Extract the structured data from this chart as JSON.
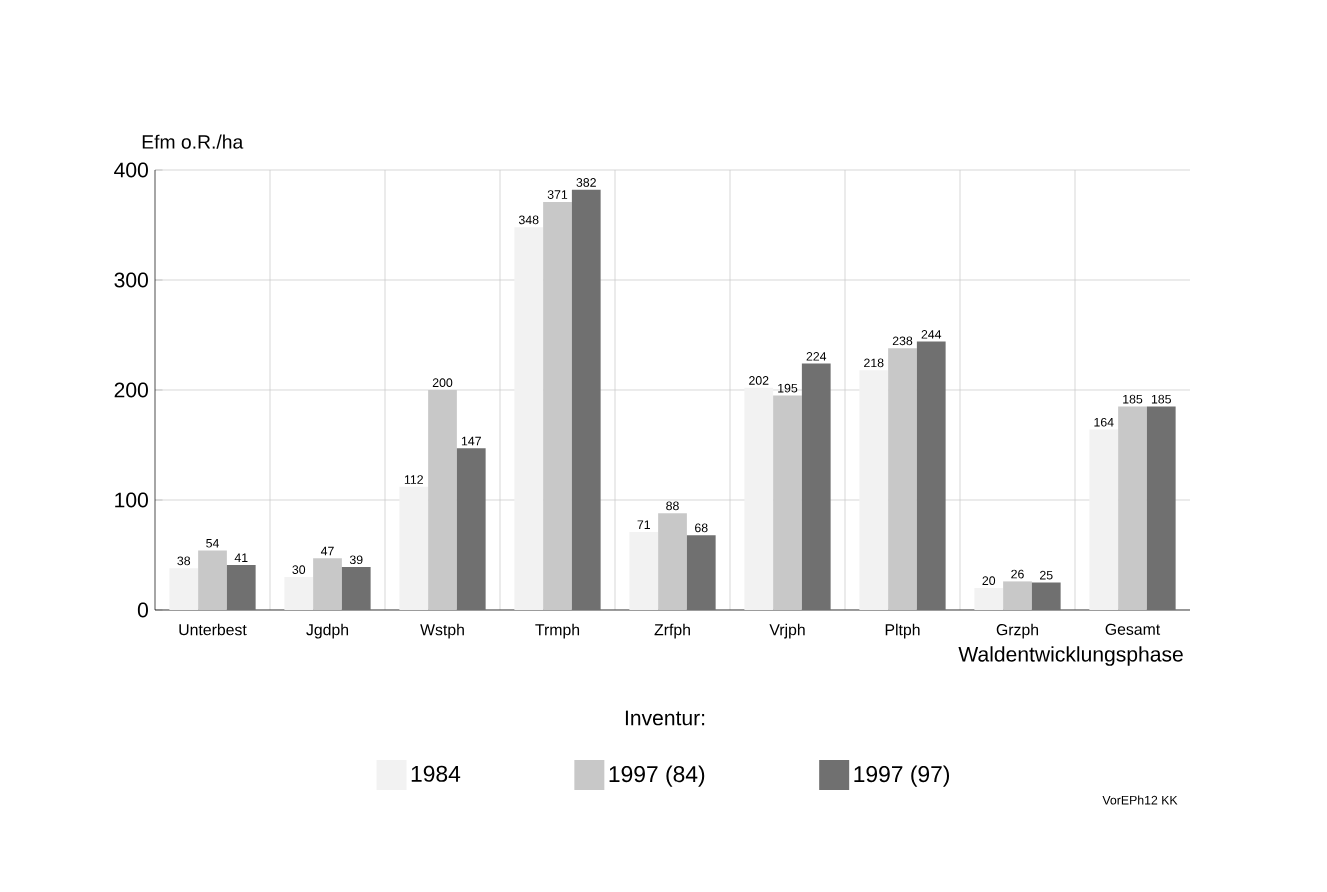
{
  "chart_data": {
    "type": "bar",
    "xlabel": "Waldentwicklungsphase",
    "ylabel": "Efm o.R./ha",
    "legend_title": "Inventur:",
    "categories": [
      "Unterbest",
      "Jgdph",
      "Wstph",
      "Trmph",
      "Zrfph",
      "Vrjph",
      "Pltph",
      "Grzph",
      "Gesamt"
    ],
    "series": [
      {
        "name": "1984",
        "color": "#f2f2f2",
        "values": [
          38,
          30,
          112,
          348,
          71,
          202,
          218,
          20,
          164
        ]
      },
      {
        "name": "1997 (84)",
        "color": "#c8c8c8",
        "values": [
          54,
          47,
          200,
          371,
          88,
          195,
          238,
          26,
          185
        ]
      },
      {
        "name": "1997 (97)",
        "color": "#707070",
        "values": [
          41,
          39,
          147,
          382,
          68,
          224,
          244,
          25,
          185
        ]
      }
    ],
    "ylim": [
      0,
      400
    ],
    "yticks": [
      0,
      100,
      200,
      300,
      400
    ],
    "grid": true,
    "legend": "bottom",
    "data_labels": true,
    "annotations": [
      "VorEPh12 KK"
    ]
  }
}
